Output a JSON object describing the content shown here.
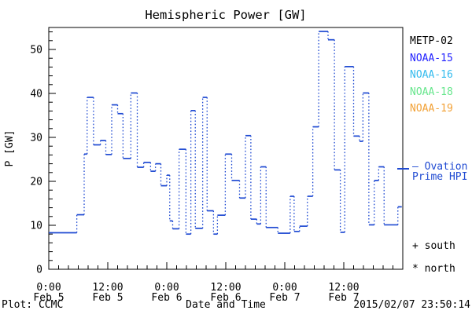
{
  "header": {
    "title": "Hemispheric Power [GW]"
  },
  "legend": {
    "satellites": [
      {
        "label": "METP-02",
        "color": "#000000"
      },
      {
        "label": "NOAA-15",
        "color": "#2222ff"
      },
      {
        "label": "NOAA-16",
        "color": "#33bbee"
      },
      {
        "label": "NOAA-18",
        "color": "#66e68c"
      },
      {
        "label": "NOAA-19",
        "color": "#f2a136"
      }
    ],
    "model_line1": "— Ovation",
    "model_line2": "Prime HPI",
    "model_color": "#1f4ad2",
    "south_label": "+ south",
    "north_label": "* north"
  },
  "footer": {
    "credit": "Plot: CCMC",
    "timestamp": "2015/02/07 23:50:14"
  },
  "chart_data": {
    "type": "line",
    "subtype": "step-histogram",
    "title": "Hemispheric Power [GW]",
    "xlabel": "Date and Time",
    "ylabel": "P [GW]",
    "ylim": [
      0,
      55
    ],
    "y_major_ticks": [
      0,
      10,
      20,
      30,
      40,
      50
    ],
    "y_minor_step": 2,
    "x_range_hours": [
      0,
      72
    ],
    "x_epoch": "Feb 5 00:00",
    "x_major_ticks": [
      {
        "hour": 0,
        "time": "0:00",
        "date": "Feb 5"
      },
      {
        "hour": 12,
        "time": "12:00",
        "date": "Feb 5"
      },
      {
        "hour": 24,
        "time": "0:00",
        "date": "Feb 6"
      },
      {
        "hour": 36,
        "time": "12:00",
        "date": "Feb 6"
      },
      {
        "hour": 48,
        "time": "0:00",
        "date": "Feb 7"
      },
      {
        "hour": 60,
        "time": "12:00",
        "date": "Feb 7"
      }
    ],
    "x_minor_step_hours": 2,
    "grid": false,
    "legend_position": "right-outside",
    "series": [
      {
        "name": "Ovation Prime HPI",
        "color": "#1f4ad2",
        "line_style": "solid-horizontal-dotted-vertical",
        "t_hours": [
          0,
          5.7,
          7.2,
          7.8,
          9.1,
          10.5,
          11.6,
          12.8,
          14.0,
          15.1,
          16.7,
          18.0,
          19.3,
          20.7,
          21.7,
          22.8,
          24.0,
          24.6,
          25.2,
          26.5,
          27.9,
          28.9,
          29.8,
          31.3,
          32.2,
          33.5,
          34.3,
          35.9,
          37.2,
          38.8,
          40.0,
          41.1,
          42.3,
          43.1,
          44.2,
          46.6,
          49.1,
          49.9,
          51.0,
          52.6,
          53.7,
          54.9,
          56.8,
          58.1,
          59.3,
          60.2,
          62.0,
          63.2,
          63.9,
          65.1,
          66.2,
          67.1,
          68.2,
          71.0
        ],
        "p_gw": [
          8.3,
          12.4,
          26.2,
          39.1,
          28.3,
          29.3,
          26.1,
          37.4,
          35.4,
          25.2,
          40.1,
          23.2,
          24.3,
          22.3,
          24.0,
          19.0,
          21.4,
          11.0,
          9.2,
          27.3,
          8.0,
          36.1,
          9.3,
          39.1,
          13.3,
          8.0,
          12.3,
          26.2,
          20.2,
          16.2,
          30.4,
          11.4,
          10.3,
          23.3,
          9.5,
          8.2,
          16.6,
          8.6,
          9.8,
          16.6,
          32.4,
          54.1,
          52.2,
          22.6,
          8.4,
          46.1,
          30.3,
          29.1,
          40.1,
          10.1,
          20.2,
          23.3,
          10.1,
          14.2
        ],
        "t_end_hours": 71.8
      }
    ]
  }
}
